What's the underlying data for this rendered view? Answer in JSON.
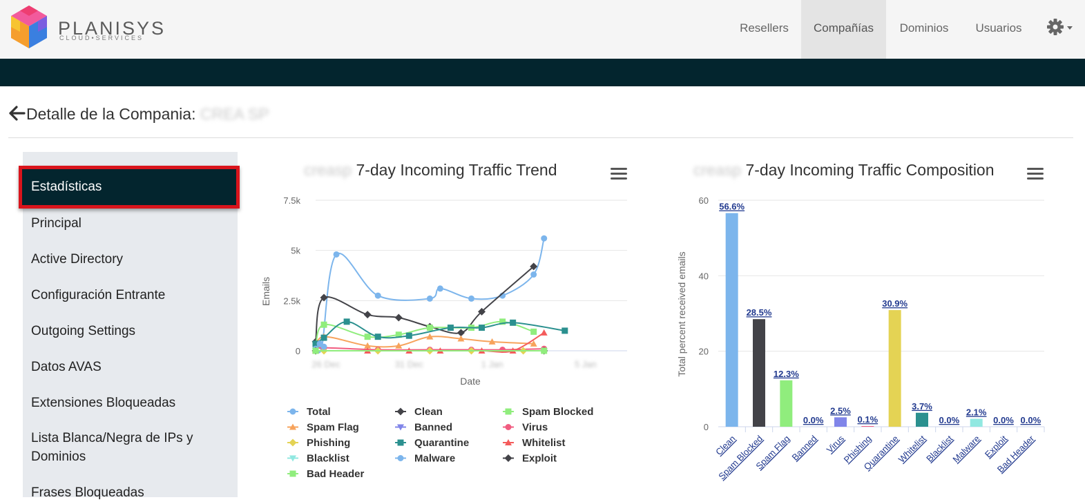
{
  "brand": {
    "name": "PLANISYS",
    "tagline": "CLOUD•SERVICES"
  },
  "nav": {
    "items": [
      "Resellers",
      "Compañías",
      "Dominios",
      "Usuarios"
    ],
    "active_index": 1,
    "settings_icon": "gear-icon"
  },
  "page": {
    "title": "Detalle de la Compania:",
    "company_name": "CREA SP"
  },
  "sidebar": {
    "active_label": "Estadísticas",
    "items": [
      "Principal",
      "Active Directory",
      "Configuración Entrante",
      "Outgoing Settings",
      "Datos AVAS",
      "Extensiones Bloqueadas",
      "Lista Blanca/Negra de IPs y",
      "Dominios",
      "Frases Bloqueadas"
    ]
  },
  "trend_chart": {
    "title_prefix": "creasp",
    "title": "7-day Incoming Traffic Trend",
    "ylabel": "Emails",
    "xlabel": "Date",
    "y_ticks": [
      "0",
      "2.5k",
      "5k",
      "7.5k"
    ],
    "x_ticks": [
      "26 Dec",
      "31 Dec",
      "1 Jan",
      "5 Jan"
    ]
  },
  "composition_chart": {
    "title_prefix": "creasp",
    "title": "7-day Incoming Traffic Composition",
    "ylabel": "Total percent received emails",
    "y_ticks": [
      "0",
      "20",
      "40",
      "60"
    ]
  },
  "chart_data": [
    {
      "type": "line",
      "title": "7-day Incoming Traffic Trend",
      "xlabel": "Date",
      "ylabel": "Emails",
      "ylim": [
        0,
        7500
      ],
      "x_range": [
        0,
        15
      ],
      "legend_placement": "bottom",
      "grid": true,
      "series": [
        {
          "name": "Total",
          "color": "#7cb5ec",
          "marker": "circle",
          "x": [
            0,
            0.3,
            1,
            3,
            5.5,
            6,
            7.5,
            9,
            10.5,
            11
          ],
          "y": [
            400,
            200,
            4800,
            2750,
            2600,
            3100,
            2600,
            2750,
            3800,
            5600
          ]
        },
        {
          "name": "Clean",
          "color": "#434348",
          "marker": "diamond",
          "x": [
            0,
            0.4,
            2.5,
            4,
            5.5,
            7,
            8,
            10.5
          ],
          "y": [
            450,
            2650,
            1800,
            1650,
            1200,
            900,
            1950,
            4200
          ]
        },
        {
          "name": "Spam Blocked",
          "color": "#90ed7d",
          "marker": "square",
          "x": [
            0,
            0.4,
            2.5,
            4,
            5.5,
            7.5,
            9,
            10.5
          ],
          "y": [
            100,
            1300,
            700,
            800,
            1150,
            1150,
            1450,
            950
          ]
        },
        {
          "name": "Spam Flag",
          "color": "#f7a35c",
          "marker": "triangle",
          "x": [
            0,
            0.4,
            2.5,
            4,
            5.5,
            7,
            8.5,
            10.5
          ],
          "y": [
            50,
            700,
            250,
            250,
            700,
            600,
            450,
            350
          ]
        },
        {
          "name": "Banned",
          "color": "#8085e9",
          "marker": "triangle-down",
          "x": [
            0,
            11
          ],
          "y": [
            0,
            0
          ]
        },
        {
          "name": "Virus",
          "color": "#f15c80",
          "marker": "circle",
          "x": [
            0,
            0.4,
            3,
            5.5,
            7.5,
            9,
            11
          ],
          "y": [
            50,
            150,
            50,
            50,
            50,
            50,
            100
          ]
        },
        {
          "name": "Phishing",
          "color": "#e4d354",
          "marker": "diamond",
          "x": [
            0,
            0.4,
            3,
            5.5,
            7.5,
            10,
            11
          ],
          "y": [
            0,
            0,
            0,
            0,
            0,
            0,
            0
          ]
        },
        {
          "name": "Quarantine",
          "color": "#2b908f",
          "marker": "square",
          "x": [
            0,
            0.4,
            1.5,
            3,
            4.5,
            6.5,
            8,
            9.5,
            12
          ],
          "y": [
            350,
            650,
            1450,
            700,
            750,
            1150,
            1150,
            1400,
            1000
          ]
        },
        {
          "name": "Whitelist",
          "color": "#f45b5b",
          "marker": "triangle",
          "x": [
            0,
            2.5,
            4.5,
            6,
            8,
            9.5,
            11
          ],
          "y": [
            0,
            0,
            0,
            0,
            0,
            0,
            900
          ]
        },
        {
          "name": "Blacklist",
          "color": "#91e8e1",
          "marker": "triangle-down",
          "x": [
            0,
            11
          ],
          "y": [
            0,
            0
          ]
        },
        {
          "name": "Malware",
          "color": "#7cb5ec",
          "marker": "circle",
          "x": [
            0,
            0.2,
            0.4
          ],
          "y": [
            100,
            350,
            200
          ]
        },
        {
          "name": "Exploit",
          "color": "#434348",
          "marker": "diamond",
          "x": [
            0,
            11
          ],
          "y": [
            0,
            0
          ]
        },
        {
          "name": "Bad Header",
          "color": "#90ed7d",
          "marker": "square",
          "x": [
            0,
            11
          ],
          "y": [
            0,
            0
          ]
        }
      ]
    },
    {
      "type": "bar",
      "title": "7-day Incoming Traffic Composition",
      "ylabel": "Total percent received emails",
      "ylim": [
        0,
        60
      ],
      "categories": [
        "Clean",
        "Spam Blocked",
        "Spam Flag",
        "Banned",
        "Virus",
        "Phishing",
        "Quarantine",
        "Whitelist",
        "Blacklist",
        "Malware",
        "Exploit",
        "Bad Header"
      ],
      "values": [
        56.6,
        28.5,
        12.3,
        0.0,
        2.5,
        0.1,
        30.9,
        3.7,
        0.0,
        2.1,
        0.0,
        0.0
      ],
      "labels": [
        "56.6%",
        "28.5%",
        "12.3%",
        "0.0%",
        "2.5%",
        "0.1%",
        "30.9%",
        "3.7%",
        "0.0%",
        "2.1%",
        "0.0%",
        "0.0%"
      ],
      "colors": [
        "#7cb5ec",
        "#434348",
        "#90ed7d",
        "#f7a35c",
        "#8085e9",
        "#f15c80",
        "#e4d354",
        "#2b908f",
        "#f45b5b",
        "#91e8e1",
        "#7cb5ec",
        "#434348"
      ]
    }
  ]
}
